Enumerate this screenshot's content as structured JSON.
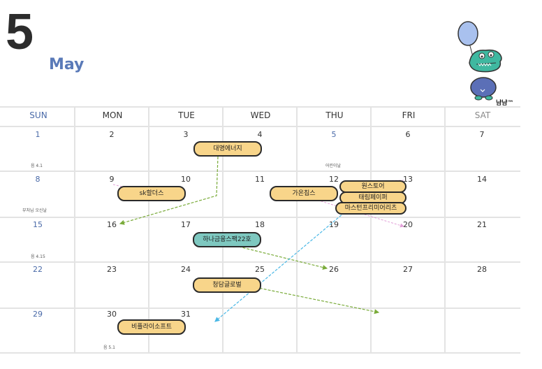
{
  "header": {
    "month_number": "5",
    "month_name": "May",
    "brand": "냠냠™"
  },
  "weekdays": [
    "SUN",
    "MON",
    "TUE",
    "WED",
    "THU",
    "FRI",
    "SAT"
  ],
  "days": {
    "d1": "1",
    "d2": "2",
    "d3": "3",
    "d4": "4",
    "d5": "5",
    "d6": "6",
    "d7": "7",
    "d8": "8",
    "d9": "9",
    "d10": "10",
    "d11": "11",
    "d12": "12",
    "d13": "13",
    "d14": "14",
    "d15": "15",
    "d16": "16",
    "d17": "17",
    "d18": "18",
    "d19": "19",
    "d20": "20",
    "d21": "21",
    "d22": "22",
    "d23": "23",
    "d24": "24",
    "d25": "25",
    "d26": "26",
    "d27": "27",
    "d28": "28",
    "d29": "29",
    "d30": "30",
    "d31": "31"
  },
  "notes": {
    "n1": "음 4.1",
    "n5": "어린이날",
    "n8": "부처님 오신날",
    "n15": "음 4.15",
    "n30": "음 5.1"
  },
  "events": {
    "e1": "대명에너지",
    "e2": "sk할더스",
    "e3": "가온칩스",
    "e4": "원스토어",
    "e5": "태림페이퍼",
    "e6": "마스턴프리미어리츠",
    "e7": "하나금융스팩22호",
    "e8": "청담글로벌",
    "e9": "비플라이소프트"
  },
  "colors": {
    "chip_yellow": "#f8d58a",
    "chip_teal": "#7ec8c0",
    "sunday_blue": "#4a6aa8",
    "arrow_green": "#7aab3a",
    "arrow_blue": "#4ab8e6",
    "arrow_pink": "#e2a0d8"
  }
}
